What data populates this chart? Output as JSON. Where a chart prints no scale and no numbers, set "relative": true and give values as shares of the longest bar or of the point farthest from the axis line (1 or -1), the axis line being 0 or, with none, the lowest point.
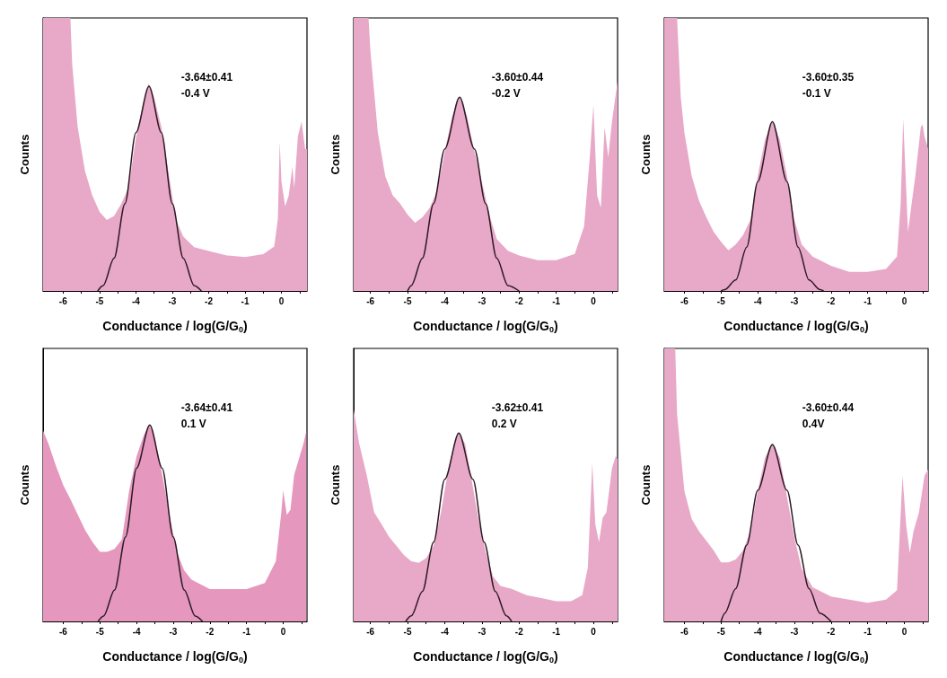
{
  "chart_data": [
    {
      "type": "area",
      "relative": true,
      "xlabel": "Conductance / log(G/G$_{0}$)",
      "ylabel": "Counts",
      "xlim": [
        -6.55,
        0.7
      ],
      "marker": "none",
      "xticks": [
        -6,
        {
          "value": -5.5,
          "label": null
        },
        -5,
        {
          "value": -4.5,
          "label": null
        },
        -4,
        {
          "value": -3.5,
          "label": null
        },
        -3,
        {
          "value": -2.5,
          "label": null
        },
        -2,
        {
          "value": -1.5,
          "label": null
        },
        -1,
        {
          "value": -0.5,
          "label": null
        },
        0,
        {
          "value": 0.5,
          "label": null
        }
      ],
      "annotations": [
        "-3.64±0.41",
        "-0.4 V"
      ],
      "series": [
        {
          "color": "#e8a8c8",
          "x": [
            -6.55,
            -5.8,
            -5.75,
            -5.6,
            -5.4,
            -5.2,
            -5.0,
            -4.8,
            -4.6,
            -4.4,
            -4.2,
            -4.0,
            -3.8,
            -3.65,
            -3.5,
            -3.3,
            -3.1,
            -2.9,
            -2.7,
            -2.4,
            -2.0,
            -1.5,
            -1.0,
            -0.5,
            -0.2,
            -0.1,
            -0.05,
            0.0,
            0.1,
            0.2,
            0.3,
            0.35,
            0.45,
            0.55,
            0.65,
            0.7
          ],
          "values": [
            1,
            1,
            0.83,
            0.6,
            0.44,
            0.35,
            0.29,
            0.26,
            0.275,
            0.32,
            0.38,
            0.56,
            0.69,
            0.76,
            0.71,
            0.6,
            0.43,
            0.26,
            0.2,
            0.16,
            0.146,
            0.13,
            0.124,
            0.135,
            0.163,
            0.264,
            0.545,
            0.4,
            0.31,
            0.35,
            0.455,
            0.376,
            0.567,
            0.62,
            0.52,
            0.52
          ]
        },
        {
          "type": "line",
          "color": "#2b1a24",
          "x": [
            -5.05,
            -4.9,
            -4.6,
            -4.3,
            -4.0,
            -3.64,
            -3.3,
            -3.0,
            -2.7,
            -2.4,
            -2.2
          ],
          "values": [
            0,
            0.02,
            0.12,
            0.32,
            0.58,
            0.75,
            0.58,
            0.32,
            0.12,
            0.02,
            0
          ]
        }
      ]
    },
    {
      "type": "area",
      "relative": true,
      "xlabel": "Conductance / log(G/G$_{0}$)",
      "ylabel": "Counts",
      "xlim": [
        -6.45,
        0.65
      ],
      "marker": "none",
      "xticks": [
        -6,
        {
          "value": -5.5,
          "label": null
        },
        -5,
        {
          "value": -4.5,
          "label": null
        },
        -4,
        {
          "value": -3.5,
          "label": null
        },
        -3,
        {
          "value": -2.5,
          "label": null
        },
        -2,
        {
          "value": -1.5,
          "label": null
        },
        -1,
        {
          "value": -0.5,
          "label": null
        },
        0,
        {
          "value": 0.5,
          "label": null
        }
      ],
      "annotations": [
        "-3.60±0.44",
        "-0.2 V"
      ],
      "series": [
        {
          "color": "#e8a8c8",
          "x": [
            -6.45,
            -6.05,
            -6.0,
            -5.8,
            -5.6,
            -5.4,
            -5.2,
            -5.0,
            -4.8,
            -4.6,
            -4.4,
            -4.2,
            -4.0,
            -3.8,
            -3.6,
            -3.4,
            -3.2,
            -3.0,
            -2.8,
            -2.6,
            -2.3,
            -2.0,
            -1.5,
            -1.0,
            -0.5,
            -0.25,
            -0.1,
            0.0,
            0.1,
            0.2,
            0.3,
            0.4,
            0.5,
            0.65
          ],
          "values": [
            1,
            1,
            0.88,
            0.58,
            0.42,
            0.35,
            0.32,
            0.28,
            0.25,
            0.27,
            0.305,
            0.37,
            0.51,
            0.64,
            0.71,
            0.64,
            0.51,
            0.4,
            0.28,
            0.19,
            0.147,
            0.13,
            0.113,
            0.113,
            0.136,
            0.237,
            0.486,
            0.68,
            0.35,
            0.305,
            0.6,
            0.49,
            0.62,
            0.77
          ]
        },
        {
          "type": "line",
          "color": "#2b1a24",
          "x": [
            -5.0,
            -4.9,
            -4.6,
            -4.3,
            -4.0,
            -3.6,
            -3.2,
            -2.9,
            -2.6,
            -2.3,
            -2.0
          ],
          "values": [
            0,
            0.02,
            0.12,
            0.32,
            0.52,
            0.71,
            0.52,
            0.32,
            0.12,
            0.02,
            0
          ]
        }
      ]
    },
    {
      "type": "area",
      "relative": true,
      "xlabel": "Conductance / log(G/G$_{0}$)",
      "ylabel": "Counts",
      "xlim": [
        -6.55,
        0.65
      ],
      "marker": "none",
      "xticks": [
        -6,
        {
          "value": -5.5,
          "label": null
        },
        -5,
        {
          "value": -4.5,
          "label": null
        },
        -4,
        {
          "value": -3.5,
          "label": null
        },
        -3,
        {
          "value": -2.5,
          "label": null
        },
        -2,
        {
          "value": -1.5,
          "label": null
        },
        -1,
        {
          "value": -0.5,
          "label": null
        },
        0,
        {
          "value": 0.5,
          "label": null
        }
      ],
      "annotations": [
        "-3.60±0.35",
        "-0.1 V"
      ],
      "series": [
        {
          "color": "#e8a8c8",
          "x": [
            -6.55,
            -6.2,
            -6.1,
            -6.0,
            -5.8,
            -5.6,
            -5.4,
            -5.2,
            -5.0,
            -4.8,
            -4.6,
            -4.4,
            -4.2,
            -4.0,
            -3.8,
            -3.6,
            -3.4,
            -3.2,
            -3.0,
            -2.8,
            -2.5,
            -2.0,
            -1.5,
            -1.0,
            -0.5,
            -0.2,
            -0.1,
            -0.03,
            0.05,
            0.1,
            0.2,
            0.3,
            0.45,
            0.5,
            0.55,
            0.65
          ],
          "values": [
            1,
            1,
            0.71,
            0.58,
            0.42,
            0.33,
            0.27,
            0.216,
            0.18,
            0.149,
            0.17,
            0.205,
            0.26,
            0.42,
            0.555,
            0.62,
            0.555,
            0.42,
            0.26,
            0.17,
            0.126,
            0.092,
            0.07,
            0.07,
            0.081,
            0.126,
            0.32,
            0.63,
            0.374,
            0.216,
            0.32,
            0.42,
            0.6,
            0.61,
            0.566,
            0.52
          ]
        },
        {
          "type": "line",
          "color": "#2b1a24",
          "x": [
            -5.0,
            -4.9,
            -4.6,
            -4.3,
            -4.0,
            -3.6,
            -3.2,
            -2.9,
            -2.6,
            -2.3,
            -2.2
          ],
          "values": [
            0,
            0.005,
            0.04,
            0.16,
            0.4,
            0.62,
            0.4,
            0.16,
            0.04,
            0.005,
            0
          ]
        }
      ]
    },
    {
      "type": "area",
      "relative": true,
      "xlabel": "Conductance / log(G/G$_{0}$)",
      "ylabel": "Counts",
      "xlim": [
        -6.55,
        0.65
      ],
      "marker": "none",
      "xticks": [
        -6,
        {
          "value": -5.5,
          "label": null
        },
        -5,
        {
          "value": -4.5,
          "label": null
        },
        -4,
        {
          "value": -3.5,
          "label": null
        },
        -3,
        {
          "value": -2.5,
          "label": null
        },
        -2,
        {
          "value": -1.5,
          "label": null
        },
        -1,
        {
          "value": -0.5,
          "label": null
        },
        0,
        {
          "value": 0.5,
          "label": null
        }
      ],
      "annotations": [
        "-3.64±0.41",
        "0.1 V"
      ],
      "series": [
        {
          "color": "#e597bd",
          "x": [
            -6.55,
            -6.4,
            -6.2,
            -6.0,
            -5.8,
            -5.6,
            -5.4,
            -5.2,
            -5.0,
            -4.8,
            -4.6,
            -4.4,
            -4.2,
            -4.0,
            -3.8,
            -3.65,
            -3.5,
            -3.3,
            -3.1,
            -2.9,
            -2.7,
            -2.5,
            -2.0,
            -1.5,
            -1.0,
            -0.5,
            -0.2,
            -0.05,
            0.0,
            0.1,
            0.2,
            0.3,
            0.45,
            0.55,
            0.63
          ],
          "values": [
            0.972,
            0.903,
            0.792,
            0.694,
            0.621,
            0.542,
            0.464,
            0.403,
            0.354,
            0.354,
            0.369,
            0.417,
            0.667,
            0.84,
            0.95,
            1,
            0.935,
            0.746,
            0.542,
            0.354,
            0.26,
            0.213,
            0.165,
            0.165,
            0.165,
            0.196,
            0.306,
            0.556,
            0.667,
            0.542,
            0.569,
            0.746,
            0.84,
            0.903,
            0.967
          ]
        },
        {
          "type": "line",
          "color": "#2b1a24",
          "x": [
            -5.05,
            -4.9,
            -4.6,
            -4.3,
            -4.0,
            -3.64,
            -3.3,
            -3.0,
            -2.7,
            -2.4,
            -2.2
          ],
          "values": [
            0,
            0.028,
            0.16,
            0.43,
            0.78,
            1,
            0.78,
            0.43,
            0.16,
            0.028,
            0
          ]
        }
      ]
    },
    {
      "type": "area",
      "relative": true,
      "xlabel": "Conductance / log(G/G$_{0}$)",
      "ylabel": "Counts",
      "xlim": [
        -6.45,
        0.65
      ],
      "marker": "none",
      "xticks": [
        -6,
        {
          "value": -5.5,
          "label": null
        },
        -5,
        {
          "value": -4.5,
          "label": null
        },
        -4,
        {
          "value": -3.5,
          "label": null
        },
        -3,
        {
          "value": -2.5,
          "label": null
        },
        -2,
        {
          "value": -1.5,
          "label": null
        },
        -1,
        {
          "value": -0.5,
          "label": null
        },
        0,
        {
          "value": 0.5,
          "label": null
        }
      ],
      "annotations": [
        "-3.62±0.41",
        "0.2 V"
      ],
      "series": [
        {
          "color": "#e8a8c8",
          "x": [
            -6.45,
            -6.3,
            -6.1,
            -5.9,
            -5.7,
            -5.5,
            -5.3,
            -5.1,
            -4.9,
            -4.7,
            -4.5,
            -4.3,
            -4.1,
            -3.9,
            -3.75,
            -3.62,
            -3.45,
            -3.3,
            -3.1,
            -2.9,
            -2.7,
            -2.5,
            -2.2,
            -1.8,
            -1.4,
            -1.0,
            -0.6,
            -0.3,
            -0.15,
            -0.03,
            0.05,
            0.15,
            0.25,
            0.35,
            0.5,
            0.6,
            0.65
          ],
          "values": [
            1,
            0.839,
            0.693,
            0.516,
            0.459,
            0.4,
            0.357,
            0.314,
            0.284,
            0.277,
            0.299,
            0.357,
            0.516,
            0.723,
            0.839,
            0.89,
            0.839,
            0.693,
            0.49,
            0.329,
            0.212,
            0.168,
            0.154,
            0.124,
            0.11,
            0.095,
            0.095,
            0.124,
            0.255,
            0.748,
            0.459,
            0.374,
            0.49,
            0.516,
            0.723,
            0.781,
            0.766
          ]
        },
        {
          "type": "line",
          "color": "#2b1a24",
          "x": [
            -5.05,
            -4.9,
            -4.6,
            -4.3,
            -4.0,
            -3.62,
            -3.24,
            -2.94,
            -2.64,
            -2.34,
            -2.2
          ],
          "values": [
            0,
            0.026,
            0.142,
            0.374,
            0.671,
            0.89,
            0.671,
            0.374,
            0.142,
            0.026,
            0
          ]
        }
      ]
    },
    {
      "type": "area",
      "relative": true,
      "xlabel": "Conductance / log(G/G$_{0}$)",
      "ylabel": "Counts",
      "xlim": [
        -6.55,
        0.65
      ],
      "marker": "none",
      "xticks": [
        -6,
        {
          "value": -5.5,
          "label": null
        },
        -5,
        {
          "value": -4.5,
          "label": null
        },
        -4,
        {
          "value": -3.5,
          "label": null
        },
        -3,
        {
          "value": -2.5,
          "label": null
        },
        -2,
        {
          "value": -1.5,
          "label": null
        },
        -1,
        {
          "value": -0.5,
          "label": null
        },
        0,
        {
          "value": 0.5,
          "label": null
        }
      ],
      "annotations": [
        "-3.60±0.44",
        "0.4V"
      ],
      "series": [
        {
          "color": "#e8a8c8",
          "x": [
            -6.55,
            -6.25,
            -6.2,
            -6.0,
            -5.8,
            -5.6,
            -5.4,
            -5.2,
            -5.0,
            -4.8,
            -4.6,
            -4.4,
            -4.2,
            -4.0,
            -3.8,
            -3.6,
            -3.4,
            -3.2,
            -3.0,
            -2.8,
            -2.5,
            -2.0,
            -1.5,
            -1.0,
            -0.5,
            -0.2,
            -0.05,
            0.05,
            0.15,
            0.25,
            0.4,
            0.55,
            0.65
          ],
          "values": [
            1,
            1,
            0.76,
            0.477,
            0.375,
            0.33,
            0.295,
            0.26,
            0.216,
            0.216,
            0.227,
            0.26,
            0.33,
            0.477,
            0.6,
            0.648,
            0.6,
            0.455,
            0.307,
            0.193,
            0.125,
            0.091,
            0.08,
            0.068,
            0.08,
            0.114,
            0.534,
            0.352,
            0.25,
            0.33,
            0.4,
            0.534,
            0.557
          ]
        },
        {
          "type": "line",
          "color": "#2b1a24",
          "x": [
            -5.0,
            -4.9,
            -4.6,
            -4.3,
            -4.0,
            -3.6,
            -3.2,
            -2.9,
            -2.6,
            -2.3,
            -2.0
          ],
          "values": [
            0,
            0.03,
            0.12,
            0.28,
            0.48,
            0.648,
            0.48,
            0.28,
            0.12,
            0.03,
            0
          ]
        }
      ]
    }
  ]
}
